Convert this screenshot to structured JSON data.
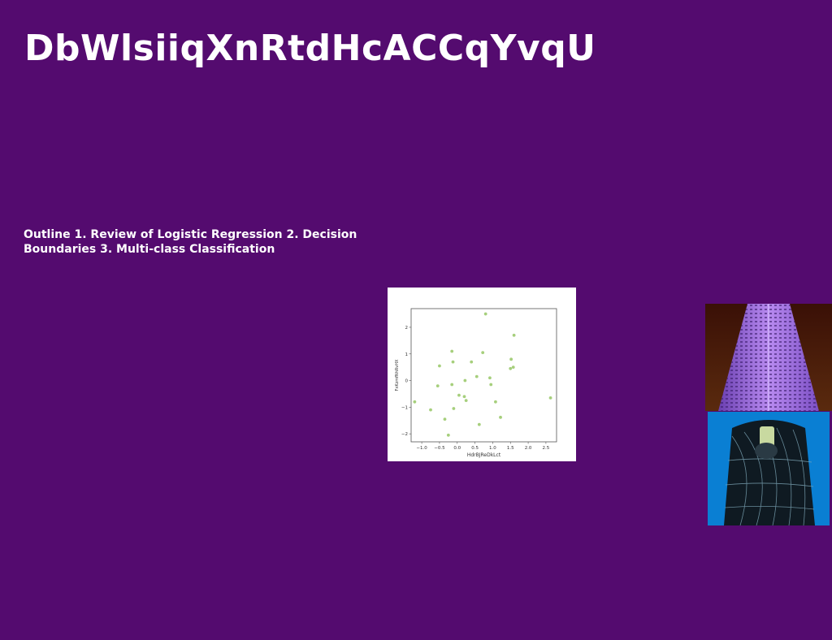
{
  "slide": {
    "title": "DbWlsiiqXnRtdHcACCqYvqU",
    "outline": "Outline 1. Review of Logistic Regression 2. Decision Boundaries 3. Multi-class Classification"
  },
  "colors": {
    "background": "#540b6f",
    "text": "#ffffff",
    "point": "#a6cf7c"
  },
  "chart_data": {
    "type": "scatter",
    "xlabel": "HdrBJReDkLct",
    "ylabel": "FxKzmfNhRvHX",
    "xlim": [
      -1.3,
      2.8
    ],
    "ylim": [
      -2.3,
      2.7
    ],
    "xticks": [
      -1.0,
      -0.5,
      0.0,
      0.5,
      1.0,
      1.5,
      2.0,
      2.5
    ],
    "yticks": [
      -2,
      -1,
      0,
      1,
      2
    ],
    "grid": false,
    "points": [
      {
        "x": -1.2,
        "y": -0.8
      },
      {
        "x": -0.75,
        "y": -1.1
      },
      {
        "x": -0.55,
        "y": -0.2
      },
      {
        "x": -0.5,
        "y": 0.55
      },
      {
        "x": -0.35,
        "y": -1.45
      },
      {
        "x": -0.25,
        "y": -2.05
      },
      {
        "x": -0.15,
        "y": -0.15
      },
      {
        "x": -0.15,
        "y": 1.1
      },
      {
        "x": -0.12,
        "y": 0.7
      },
      {
        "x": -0.1,
        "y": -1.05
      },
      {
        "x": 0.05,
        "y": -0.55
      },
      {
        "x": 0.2,
        "y": -0.6
      },
      {
        "x": 0.22,
        "y": 0.0
      },
      {
        "x": 0.25,
        "y": -0.75
      },
      {
        "x": 0.4,
        "y": 0.7
      },
      {
        "x": 0.55,
        "y": 0.15
      },
      {
        "x": 0.62,
        "y": -1.65
      },
      {
        "x": 0.72,
        "y": 1.05
      },
      {
        "x": 0.8,
        "y": 2.5
      },
      {
        "x": 0.92,
        "y": 0.1
      },
      {
        "x": 0.95,
        "y": -0.15
      },
      {
        "x": 1.08,
        "y": -0.8
      },
      {
        "x": 1.22,
        "y": -1.38
      },
      {
        "x": 1.5,
        "y": 0.45
      },
      {
        "x": 1.52,
        "y": 0.8
      },
      {
        "x": 1.58,
        "y": 0.5
      },
      {
        "x": 1.6,
        "y": 1.7
      },
      {
        "x": 2.63,
        "y": -0.65
      }
    ]
  },
  "images": {
    "building": "building-photo",
    "phone": "phone-photo"
  }
}
